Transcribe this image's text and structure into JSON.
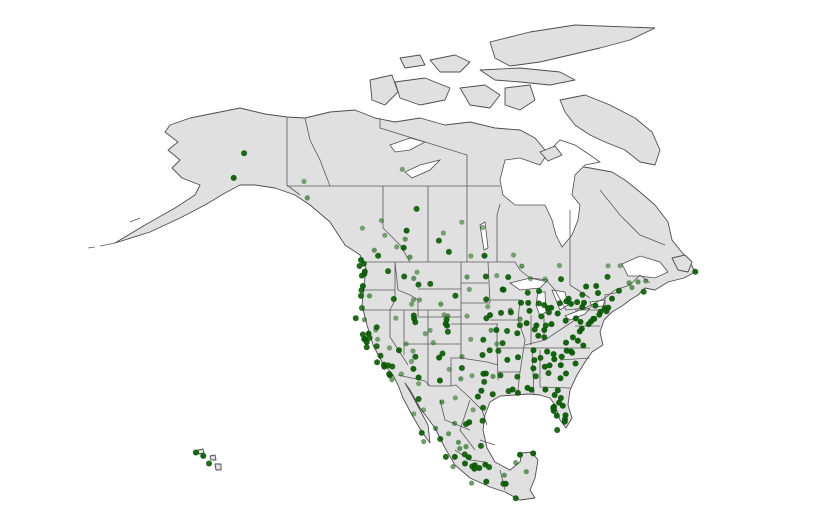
{
  "map": {
    "region": "North America",
    "colors": {
      "land": "#e0e0e0",
      "border": "#4d4d4d",
      "point": "#0b5a06",
      "background": "#ffffff"
    },
    "points": [
      [
        47.6,
        -122.3,
        0.95
      ],
      [
        47.25,
        -122.4,
        0.95
      ],
      [
        47.0,
        -122.9,
        0.9
      ],
      [
        49.28,
        -123.1,
        0.95
      ],
      [
        48.4,
        -123.4,
        0.9
      ],
      [
        48.75,
        -122.5,
        0.9
      ],
      [
        45.5,
        -122.7,
        0.95
      ],
      [
        44.9,
        -123.0,
        0.9
      ],
      [
        44.05,
        -123.1,
        0.9
      ],
      [
        42.3,
        -122.9,
        0.8
      ],
      [
        44.05,
        -121.3,
        0.6
      ],
      [
        47.66,
        -117.4,
        0.9
      ],
      [
        43.6,
        -116.2,
        0.9
      ],
      [
        46.87,
        -114.0,
        0.9
      ],
      [
        46.6,
        -112.0,
        0.6
      ],
      [
        45.8,
        -108.5,
        0.9
      ],
      [
        45.7,
        -111.0,
        0.9
      ],
      [
        47.5,
        -111.3,
        0.5
      ],
      [
        51.05,
        -114.1,
        0.95
      ],
      [
        53.55,
        -113.5,
        0.95
      ],
      [
        52.3,
        -113.8,
        0.6
      ],
      [
        49.7,
        -112.8,
        0.6
      ],
      [
        52.1,
        -106.7,
        0.9
      ],
      [
        50.45,
        -104.6,
        0.9
      ],
      [
        49.9,
        -97.1,
        0.95
      ],
      [
        49.9,
        -119.5,
        0.9
      ],
      [
        50.7,
        -120.3,
        0.6
      ],
      [
        53.9,
        -122.8,
        0.5
      ],
      [
        56.7,
        -111.4,
        0.9
      ],
      [
        60.7,
        -135.1,
        0.5
      ],
      [
        61.2,
        -149.9,
        0.95
      ],
      [
        64.8,
        -147.7,
        0.9
      ],
      [
        58.3,
        -134.4,
        0.6
      ],
      [
        62.45,
        -114.4,
        0.5
      ],
      [
        37.77,
        -122.4,
        0.95
      ],
      [
        37.8,
        -122.27,
        0.95
      ],
      [
        37.33,
        -121.9,
        0.95
      ],
      [
        38.58,
        -121.5,
        0.95
      ],
      [
        36.74,
        -119.8,
        0.9
      ],
      [
        35.37,
        -119.0,
        0.9
      ],
      [
        34.05,
        -118.25,
        0.95
      ],
      [
        33.77,
        -118.2,
        0.95
      ],
      [
        32.7,
        -117.16,
        0.95
      ],
      [
        33.95,
        -117.4,
        0.9
      ],
      [
        34.4,
        -119.7,
        0.9
      ],
      [
        36.6,
        -121.9,
        0.9
      ],
      [
        40.6,
        -122.4,
        0.6
      ],
      [
        40.8,
        -124.2,
        0.9
      ],
      [
        38.44,
        -122.7,
        0.9
      ],
      [
        37.95,
        -121.3,
        0.9
      ],
      [
        33.8,
        -116.5,
        0.9
      ],
      [
        39.5,
        -119.8,
        0.9
      ],
      [
        36.17,
        -115.1,
        0.95
      ],
      [
        33.45,
        -112.07,
        0.95
      ],
      [
        32.2,
        -110.97,
        0.95
      ],
      [
        35.2,
        -111.65,
        0.9
      ],
      [
        40.76,
        -111.9,
        0.95
      ],
      [
        40.23,
        -111.66,
        0.9
      ],
      [
        41.2,
        -111.97,
        0.9
      ],
      [
        39.74,
        -104.99,
        0.95
      ],
      [
        40.0,
        -105.27,
        0.95
      ],
      [
        38.83,
        -104.8,
        0.9
      ],
      [
        40.58,
        -105.08,
        0.9
      ],
      [
        35.08,
        -106.65,
        0.95
      ],
      [
        35.69,
        -105.94,
        0.9
      ],
      [
        31.76,
        -106.49,
        0.9
      ],
      [
        41.14,
        -104.82,
        0.6
      ],
      [
        42.87,
        -106.3,
        0.6
      ],
      [
        44.08,
        -103.23,
        0.9
      ],
      [
        43.55,
        -96.73,
        0.9
      ],
      [
        46.88,
        -96.79,
        0.9
      ],
      [
        46.8,
        -100.78,
        0.6
      ],
      [
        41.26,
        -95.93,
        0.95
      ],
      [
        40.8,
        -96.7,
        0.9
      ],
      [
        39.1,
        -94.58,
        0.95
      ],
      [
        37.69,
        -97.34,
        0.9
      ],
      [
        39.05,
        -95.7,
        0.6
      ],
      [
        35.47,
        -97.52,
        0.95
      ],
      [
        36.15,
        -95.99,
        0.9
      ],
      [
        32.78,
        -96.8,
        0.95
      ],
      [
        32.75,
        -97.33,
        0.95
      ],
      [
        30.27,
        -97.74,
        0.95
      ],
      [
        29.42,
        -98.49,
        0.95
      ],
      [
        29.76,
        -95.37,
        0.95
      ],
      [
        27.8,
        -97.4,
        0.9
      ],
      [
        33.58,
        -101.85,
        0.9
      ],
      [
        35.22,
        -101.83,
        0.6
      ],
      [
        32.0,
        -102.08,
        0.6
      ],
      [
        25.9,
        -97.5,
        0.9
      ],
      [
        31.55,
        -97.15,
        0.9
      ],
      [
        32.35,
        -95.3,
        0.6
      ],
      [
        44.98,
        -93.27,
        0.95
      ],
      [
        44.95,
        -93.09,
        0.95
      ],
      [
        46.79,
        -92.1,
        0.9
      ],
      [
        41.59,
        -93.62,
        0.9
      ],
      [
        41.66,
        -91.53,
        0.9
      ],
      [
        41.98,
        -91.67,
        0.6
      ],
      [
        43.07,
        -89.4,
        0.95
      ],
      [
        43.04,
        -87.9,
        0.95
      ],
      [
        44.5,
        -88.0,
        0.9
      ],
      [
        41.88,
        -87.63,
        0.95
      ],
      [
        39.8,
        -89.65,
        0.9
      ],
      [
        40.1,
        -88.24,
        0.95
      ],
      [
        40.7,
        -89.6,
        0.6
      ],
      [
        38.63,
        -90.2,
        0.95
      ],
      [
        38.95,
        -92.33,
        0.9
      ],
      [
        37.2,
        -93.29,
        0.9
      ],
      [
        39.77,
        -86.16,
        0.95
      ],
      [
        39.17,
        -86.53,
        0.9
      ],
      [
        41.08,
        -85.14,
        0.9
      ],
      [
        42.33,
        -83.05,
        0.95
      ],
      [
        42.28,
        -83.74,
        0.95
      ],
      [
        42.73,
        -84.55,
        0.9
      ],
      [
        42.96,
        -85.67,
        0.9
      ],
      [
        44.76,
        -85.62,
        0.9
      ],
      [
        41.65,
        -83.54,
        0.9
      ],
      [
        39.96,
        -83.0,
        0.95
      ],
      [
        41.5,
        -81.69,
        0.95
      ],
      [
        39.1,
        -84.51,
        0.95
      ],
      [
        39.76,
        -84.19,
        0.9
      ],
      [
        38.25,
        -85.76,
        0.95
      ],
      [
        38.04,
        -84.5,
        0.9
      ],
      [
        36.16,
        -86.78,
        0.95
      ],
      [
        35.15,
        -90.05,
        0.95
      ],
      [
        35.96,
        -83.92,
        0.95
      ],
      [
        35.05,
        -85.31,
        0.9
      ],
      [
        34.75,
        -92.29,
        0.95
      ],
      [
        36.06,
        -94.16,
        0.9
      ],
      [
        32.3,
        -90.18,
        0.9
      ],
      [
        29.95,
        -90.07,
        0.95
      ],
      [
        30.45,
        -91.15,
        0.95
      ],
      [
        30.22,
        -92.02,
        0.9
      ],
      [
        32.5,
        -93.75,
        0.9
      ],
      [
        33.52,
        -86.8,
        0.95
      ],
      [
        34.73,
        -86.59,
        0.95
      ],
      [
        30.69,
        -88.04,
        0.95
      ],
      [
        32.37,
        -86.3,
        0.9
      ],
      [
        33.75,
        -84.39,
        0.95
      ],
      [
        33.96,
        -83.38,
        0.95
      ],
      [
        32.08,
        -81.09,
        0.95
      ],
      [
        32.84,
        -83.63,
        0.9
      ],
      [
        30.44,
        -84.28,
        0.95
      ],
      [
        30.42,
        -87.22,
        0.95
      ],
      [
        30.33,
        -81.66,
        0.95
      ],
      [
        29.65,
        -82.32,
        0.95
      ],
      [
        28.54,
        -81.38,
        0.95
      ],
      [
        27.95,
        -82.46,
        0.95
      ],
      [
        27.77,
        -82.64,
        0.95
      ],
      [
        27.34,
        -82.53,
        0.95
      ],
      [
        26.64,
        -81.87,
        0.95
      ],
      [
        25.76,
        -80.19,
        0.95
      ],
      [
        26.12,
        -80.14,
        0.95
      ],
      [
        26.72,
        -80.05,
        0.95
      ],
      [
        28.08,
        -80.61,
        0.95
      ],
      [
        29.21,
        -81.02,
        0.95
      ],
      [
        24.56,
        -81.78,
        0.9
      ],
      [
        32.78,
        -79.93,
        0.95
      ],
      [
        34.0,
        -81.03,
        0.95
      ],
      [
        34.85,
        -82.4,
        0.95
      ],
      [
        35.23,
        -80.84,
        0.95
      ],
      [
        35.78,
        -78.64,
        0.95
      ],
      [
        35.99,
        -78.9,
        0.95
      ],
      [
        36.07,
        -79.79,
        0.95
      ],
      [
        35.6,
        -82.55,
        0.95
      ],
      [
        34.23,
        -77.94,
        0.95
      ],
      [
        37.54,
        -77.44,
        0.95
      ],
      [
        36.85,
        -76.29,
        0.95
      ],
      [
        37.27,
        -79.94,
        0.95
      ],
      [
        38.03,
        -78.48,
        0.95
      ],
      [
        38.9,
        -77.04,
        0.95
      ],
      [
        39.29,
        -76.61,
        0.95
      ],
      [
        39.95,
        -75.17,
        0.95
      ],
      [
        40.44,
        -79.99,
        0.95
      ],
      [
        40.27,
        -76.88,
        0.95
      ],
      [
        40.79,
        -77.86,
        0.95
      ],
      [
        40.71,
        -74.0,
        0.95
      ],
      [
        40.73,
        -74.17,
        0.95
      ],
      [
        40.35,
        -74.66,
        0.95
      ],
      [
        42.65,
        -73.75,
        0.95
      ],
      [
        43.05,
        -76.15,
        0.95
      ],
      [
        43.16,
        -77.61,
        0.95
      ],
      [
        42.89,
        -78.88,
        0.95
      ],
      [
        42.44,
        -76.5,
        0.95
      ],
      [
        41.76,
        -72.68,
        0.95
      ],
      [
        41.31,
        -72.92,
        0.95
      ],
      [
        41.82,
        -71.41,
        0.95
      ],
      [
        42.36,
        -71.06,
        0.95
      ],
      [
        42.26,
        -71.8,
        0.95
      ],
      [
        44.48,
        -73.21,
        0.95
      ],
      [
        43.66,
        -70.26,
        0.95
      ],
      [
        44.8,
        -68.77,
        0.9
      ],
      [
        43.65,
        -79.38,
        0.95
      ],
      [
        45.42,
        -75.7,
        0.95
      ],
      [
        45.5,
        -73.57,
        0.95
      ],
      [
        46.81,
        -71.21,
        0.9
      ],
      [
        43.26,
        -79.87,
        0.95
      ],
      [
        42.98,
        -81.25,
        0.95
      ],
      [
        44.23,
        -76.49,
        0.9
      ],
      [
        46.49,
        -80.99,
        0.9
      ],
      [
        48.38,
        -89.25,
        0.6
      ],
      [
        44.65,
        -63.57,
        0.9
      ],
      [
        46.09,
        -64.78,
        0.6
      ],
      [
        45.96,
        -66.64,
        0.6
      ],
      [
        46.24,
        -63.13,
        0.6
      ],
      [
        47.56,
        -52.71,
        0.9
      ],
      [
        45.27,
        -66.06,
        0.6
      ],
      [
        19.43,
        -99.13,
        0.95
      ],
      [
        20.66,
        -103.35,
        0.95
      ],
      [
        25.69,
        -100.32,
        0.95
      ],
      [
        19.04,
        -98.2,
        0.95
      ],
      [
        17.07,
        -96.72,
        0.95
      ],
      [
        19.17,
        -96.13,
        0.9
      ],
      [
        20.97,
        -89.62,
        0.95
      ],
      [
        21.16,
        -86.85,
        0.95
      ],
      [
        32.5,
        -117.0,
        0.9
      ],
      [
        29.07,
        -110.96,
        0.9
      ],
      [
        28.63,
        -106.07,
        0.6
      ],
      [
        24.8,
        -107.39,
        0.6
      ],
      [
        23.25,
        -106.41,
        0.9
      ],
      [
        22.15,
        -100.98,
        0.6
      ],
      [
        20.59,
        -100.39,
        0.95
      ],
      [
        19.7,
        -101.19,
        0.95
      ],
      [
        19.28,
        -99.66,
        0.9
      ],
      [
        18.92,
        -99.23,
        0.95
      ],
      [
        19.54,
        -96.91,
        0.95
      ],
      [
        16.75,
        -93.12,
        0.9
      ],
      [
        16.74,
        -92.64,
        0.95
      ],
      [
        17.99,
        -92.93,
        0.6
      ],
      [
        24.14,
        -110.31,
        0.9
      ],
      [
        22.89,
        -109.9,
        0.6
      ],
      [
        31.87,
        -116.6,
        0.6
      ],
      [
        25.54,
        -103.4,
        0.6
      ],
      [
        25.42,
        -101.0,
        0.9
      ],
      [
        22.25,
        -97.86,
        0.9
      ],
      [
        16.85,
        -99.82,
        0.6
      ],
      [
        21.02,
        -101.26,
        0.9
      ],
      [
        22.77,
        -102.58,
        0.6
      ],
      [
        24.02,
        -104.66,
        0.6
      ],
      [
        21.88,
        -102.3,
        0.6
      ],
      [
        20.65,
        -105.23,
        0.9
      ],
      [
        19.24,
        -103.72,
        0.6
      ],
      [
        19.83,
        -90.53,
        0.6
      ],
      [
        18.5,
        -88.3,
        0.6
      ],
      [
        14.63,
        -90.5,
        0.9
      ],
      [
        21.3,
        -157.86,
        0.95
      ],
      [
        20.8,
        -156.3,
        0.95
      ],
      [
        19.7,
        -155.1,
        0.9
      ],
      [
        39.06,
        -108.55,
        0.5
      ],
      [
        38.57,
        -109.55,
        0.5
      ],
      [
        37.1,
        -113.58,
        0.5
      ],
      [
        42.87,
        -112.45,
        0.5
      ],
      [
        43.49,
        -112.04,
        0.5
      ],
      [
        43.48,
        -110.76,
        0.5
      ],
      [
        41.31,
        -105.59,
        0.5
      ],
      [
        37.27,
        -107.88,
        0.5
      ],
      [
        42.5,
        -96.4,
        0.5
      ],
      [
        41.12,
        -100.77,
        0.5
      ],
      [
        37.75,
        -100.0,
        0.5
      ],
      [
        46.55,
        -87.4,
        0.5
      ],
      [
        39.1,
        -120.0,
        0.5
      ],
      [
        37.75,
        -119.6,
        0.5
      ],
      [
        36.5,
        -117.1,
        0.5
      ],
      [
        40.83,
        -115.76,
        0.5
      ],
      [
        36.05,
        -112.14,
        0.5
      ],
      [
        32.7,
        -114.6,
        0.5
      ],
      [
        34.54,
        -112.47,
        0.5
      ],
      [
        33.39,
        -104.52,
        0.5
      ],
      [
        29.25,
        -103.25,
        0.5
      ],
      [
        27.5,
        -99.5,
        0.5
      ],
      [
        32.45,
        -99.73,
        0.5
      ],
      [
        37.08,
        -94.5,
        0.5
      ],
      [
        46.5,
        -84.35,
        0.5
      ],
      [
        48.48,
        -81.33,
        0.5
      ],
      [
        48.43,
        -71.07,
        0.5
      ],
      [
        48.45,
        -68.52,
        0.5
      ],
      [
        52.87,
        -118.08,
        0.5
      ],
      [
        51.18,
        -115.57,
        0.5
      ],
      [
        53.2,
        -105.75,
        0.5
      ],
      [
        49.85,
        -99.95,
        0.5
      ],
      [
        54.77,
        -101.88,
        0.5
      ],
      [
        26.9,
        -112.0,
        0.5
      ],
      [
        27.48,
        -109.93,
        0.5
      ],
      [
        31.3,
        -110.94,
        0.5
      ],
      [
        31.7,
        -106.45,
        0.5
      ],
      [
        55.0,
        -118.8,
        0.5
      ],
      [
        54.0,
        -97.5,
        0.5
      ],
      [
        50.0,
        -91.0,
        0.5
      ],
      [
        47.0,
        -94.5,
        0.5
      ],
      [
        45.0,
        -100.3,
        0.5
      ]
    ]
  }
}
